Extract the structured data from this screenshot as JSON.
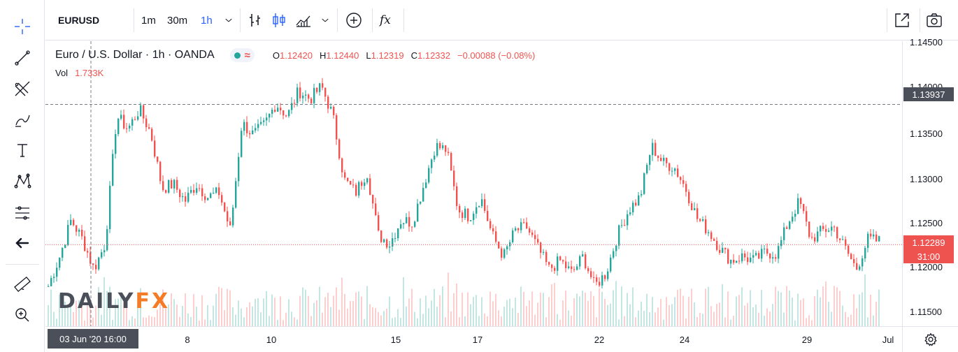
{
  "symbol": "EURUSD",
  "intervals": [
    {
      "label": "1m",
      "active": false
    },
    {
      "label": "30m",
      "active": false
    },
    {
      "label": "1h",
      "active": true
    }
  ],
  "indicator_button": "fx",
  "legend": {
    "title": "Euro / U.S. Dollar · 1h · OANDA",
    "ohlc": [
      {
        "k": "O",
        "v": "1.12420"
      },
      {
        "k": "H",
        "v": "1.12440"
      },
      {
        "k": "L",
        "v": "1.12319"
      },
      {
        "k": "C",
        "v": "1.12332"
      }
    ],
    "change": "−0.00088 (−0.08%)"
  },
  "volume": {
    "label": "Vol",
    "value": "1.733K"
  },
  "watermark": {
    "part1": "DAILY",
    "part2": "FX"
  },
  "price_axis": {
    "ticks": [
      "1.14500",
      "1.14000",
      "1.13500",
      "1.13000",
      "1.12500",
      "1.12000",
      "1.11500"
    ],
    "crosshair_price": "1.13937",
    "last_price": "1.12289",
    "countdown": "31:00"
  },
  "time_axis": {
    "ticks": [
      "8",
      "10",
      "15",
      "17",
      "22",
      "24",
      "29",
      "Jul"
    ],
    "crosshair_time": "03 Jun '20  16:00"
  },
  "colors": {
    "up": "#26a69a",
    "down": "#ef5350",
    "accent": "#2962ff",
    "watermark_fx": "#f47c26"
  },
  "chart_data": {
    "type": "candlestick",
    "title": "Euro / U.S. Dollar · 1h · OANDA",
    "x_labels": [
      "8",
      "10",
      "15",
      "17",
      "22",
      "24",
      "29",
      "Jul"
    ],
    "ylim": [
      1.1133,
      1.1468
    ],
    "close_path": [
      1.118,
      1.1215,
      1.1258,
      1.1235,
      1.12,
      1.123,
      1.138,
      1.1365,
      1.1388,
      1.136,
      1.1295,
      1.13,
      1.128,
      1.13,
      1.1285,
      1.129,
      1.1245,
      1.1372,
      1.1358,
      1.137,
      1.1395,
      1.138,
      1.141,
      1.14,
      1.1415,
      1.138,
      1.1305,
      1.129,
      1.1315,
      1.124,
      1.123,
      1.1258,
      1.1255,
      1.13,
      1.1345,
      1.134,
      1.127,
      1.1262,
      1.1285,
      1.124,
      1.1215,
      1.1245,
      1.125,
      1.1225,
      1.12,
      1.121,
      1.1195,
      1.1215,
      1.118,
      1.1195,
      1.124,
      1.127,
      1.1285,
      1.1345,
      1.1325,
      1.132,
      1.1295,
      1.126,
      1.1245,
      1.1225,
      1.121,
      1.1215,
      1.121,
      1.122,
      1.1218,
      1.1255,
      1.128,
      1.1235,
      1.1245,
      1.125,
      1.1225,
      1.12,
      1.1235,
      1.1233
    ],
    "crosshair_price": 1.13937,
    "last_price": 1.12289
  }
}
